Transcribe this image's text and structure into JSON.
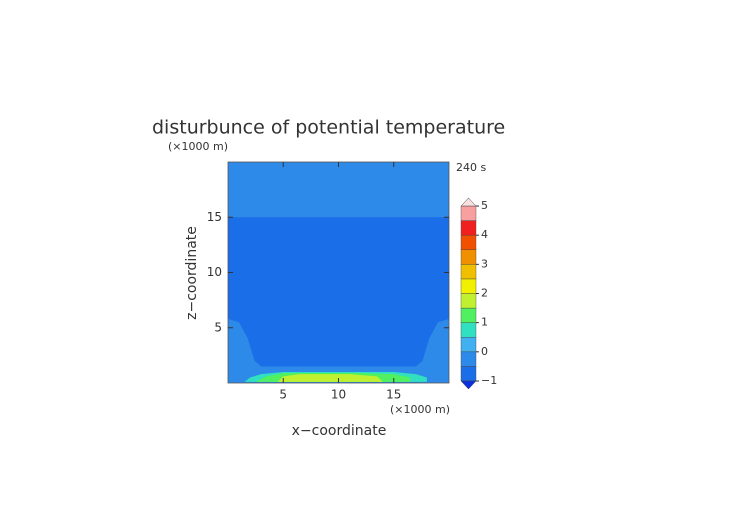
{
  "chart_data": {
    "type": "contour",
    "title": "disturbunce of potential temperature",
    "time_label": "240 s",
    "x_label": "x−coordinate",
    "y_label": "z−coordinate",
    "x_unit": "(×1000 m)",
    "y_unit": "(×1000 m)",
    "xlim": [
      0,
      20
    ],
    "ylim": [
      0,
      20
    ],
    "xticks": [
      5,
      10,
      15
    ],
    "yticks": [
      5,
      10,
      15
    ],
    "colorbar": {
      "levels": [
        -1,
        -0.5,
        0,
        0.5,
        1,
        1.5,
        2,
        2.5,
        3,
        3.5,
        4,
        4.5,
        5
      ],
      "colors": [
        "#1a6ee8",
        "#2e8ae8",
        "#40b0f0",
        "#30e0c0",
        "#50f060",
        "#c0f030",
        "#f0f000",
        "#f0c000",
        "#f09000",
        "#f05000",
        "#f02020",
        "#f8a0a0"
      ],
      "under_color": "#0a30e0",
      "over_color": "#fbe0e0",
      "ticks": [
        {
          "value": -1,
          "label": "−1"
        },
        0,
        1,
        2,
        3,
        4,
        5
      ]
    },
    "regions": [
      {
        "level": -0.5,
        "x": [
          0,
          20,
          20,
          0
        ],
        "z": [
          0,
          0,
          20,
          20
        ]
      },
      {
        "level": -1,
        "x": [
          0,
          20,
          20,
          19,
          18.2,
          17.6,
          17,
          3,
          2.4,
          1.8,
          1,
          0
        ],
        "z": [
          15,
          15,
          5.8,
          5.5,
          4,
          2,
          1.5,
          1.5,
          2,
          4,
          5.5,
          5.8
        ]
      },
      {
        "level": 0.5,
        "x": [
          1.5,
          18,
          18,
          17,
          15,
          5,
          3,
          2
        ],
        "z": [
          0.1,
          0.1,
          0.5,
          0.8,
          1,
          1,
          0.8,
          0.5
        ]
      },
      {
        "level": 1,
        "x": [
          2.5,
          16.5,
          16.5,
          15,
          12,
          5,
          3.5
        ],
        "z": [
          0.1,
          0.1,
          0.5,
          0.8,
          0.9,
          0.9,
          0.6
        ]
      },
      {
        "level": 1.5,
        "x": [
          4.5,
          14,
          13.5,
          11,
          6.5,
          5
        ],
        "z": [
          0.1,
          0.1,
          0.6,
          0.8,
          0.8,
          0.6
        ]
      }
    ]
  }
}
